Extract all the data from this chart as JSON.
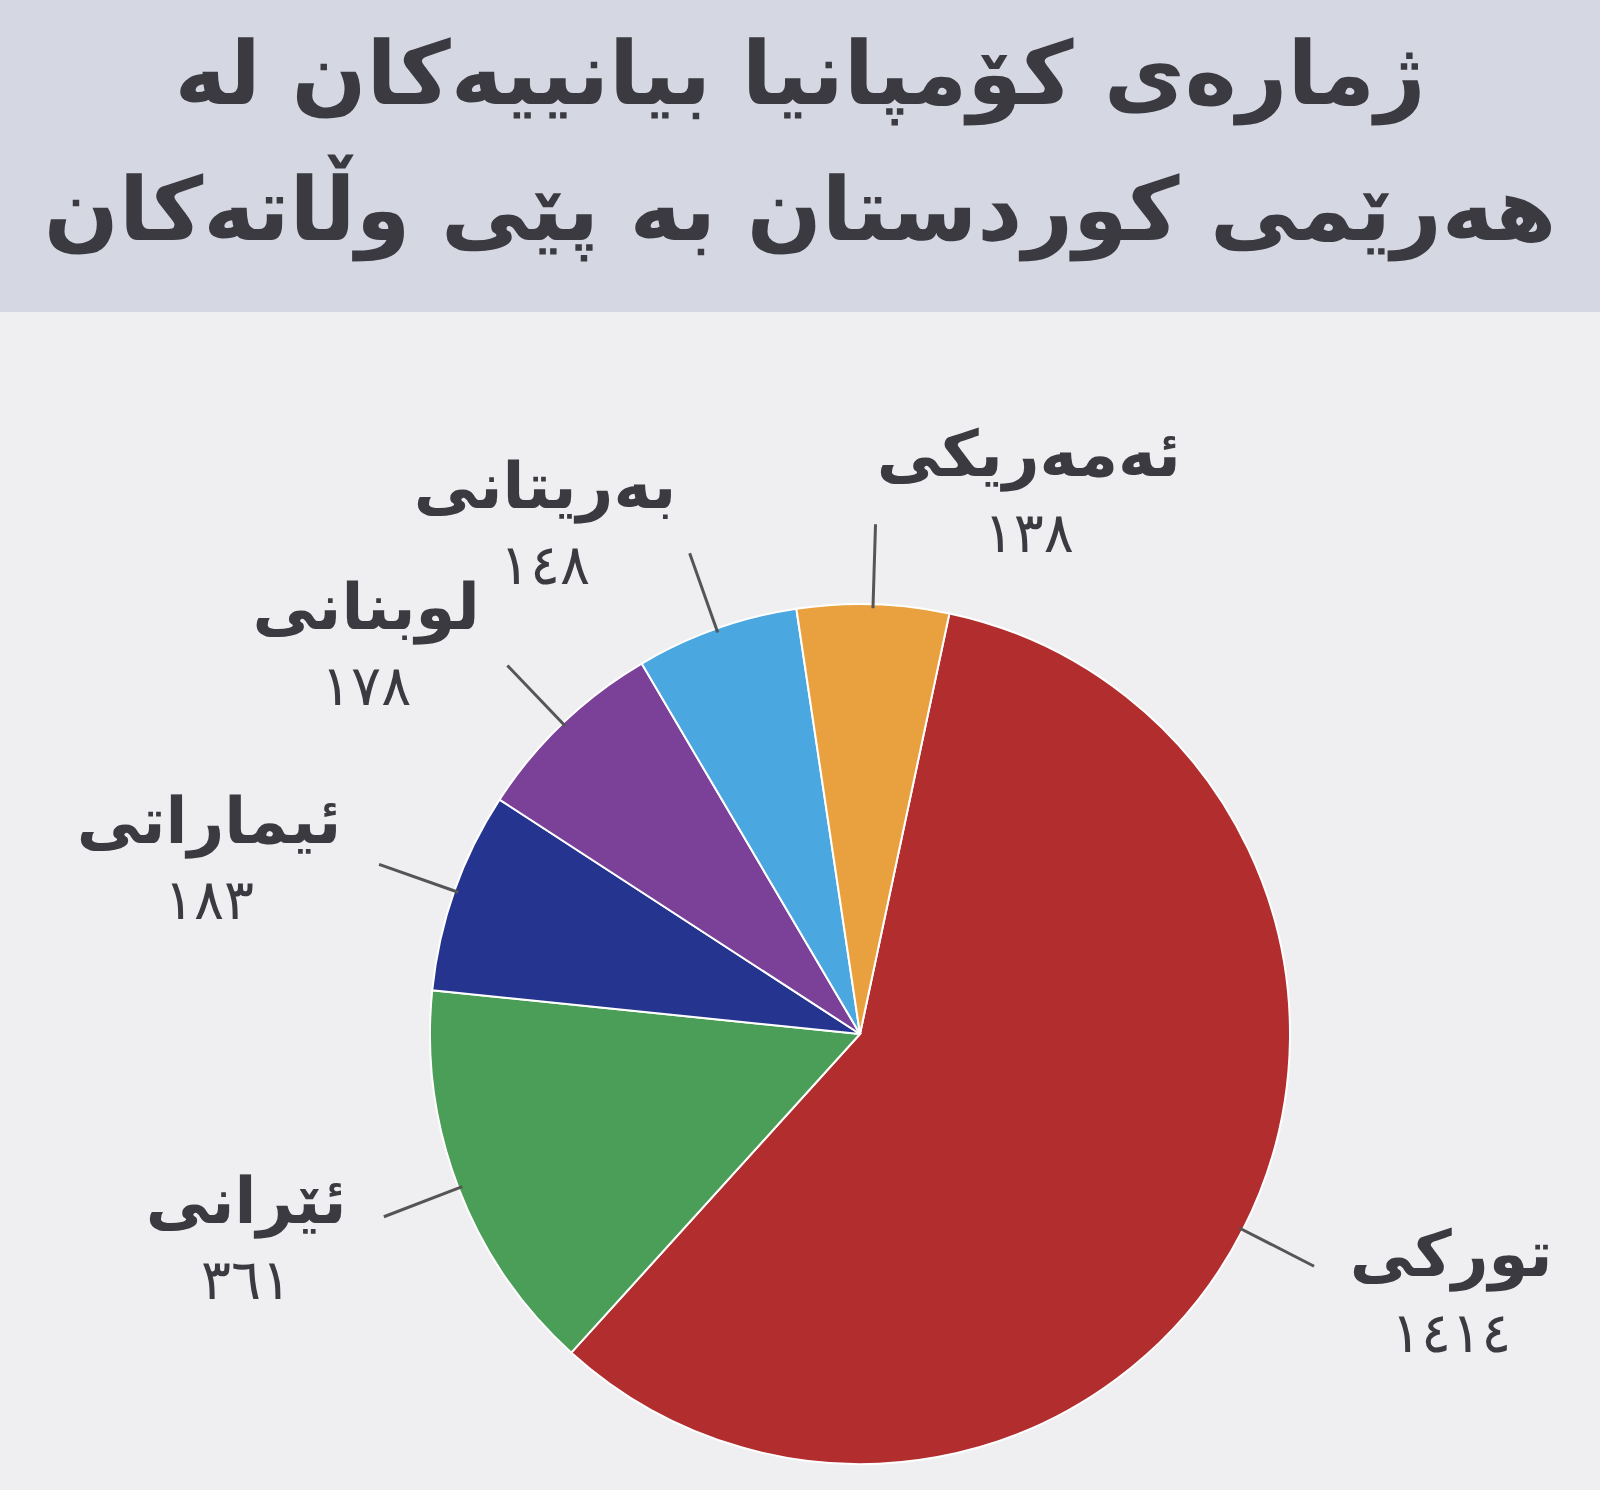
{
  "chart_data": {
    "type": "pie",
    "title": "ژمارەی کۆمپانیا بیانییەکان لە هەرێمی کوردستان بە پێی وڵاتەکان",
    "categories": [
      "تورکی",
      "ئێرانی",
      "ئیماراتی",
      "لوبنانی",
      "بەریتانی",
      "ئەمەریکی"
    ],
    "values": [
      1414,
      361,
      183,
      178,
      148,
      138
    ],
    "colors": [
      "#b22d2e",
      "#4b9e57",
      "#25348f",
      "#7b4199",
      "#4ba7df",
      "#e9a13f"
    ],
    "value_labels": [
      "١٤١٤",
      "٣٦١",
      "١٨٣",
      "١٧٨",
      "١٤٨",
      "١٣٨"
    ]
  }
}
